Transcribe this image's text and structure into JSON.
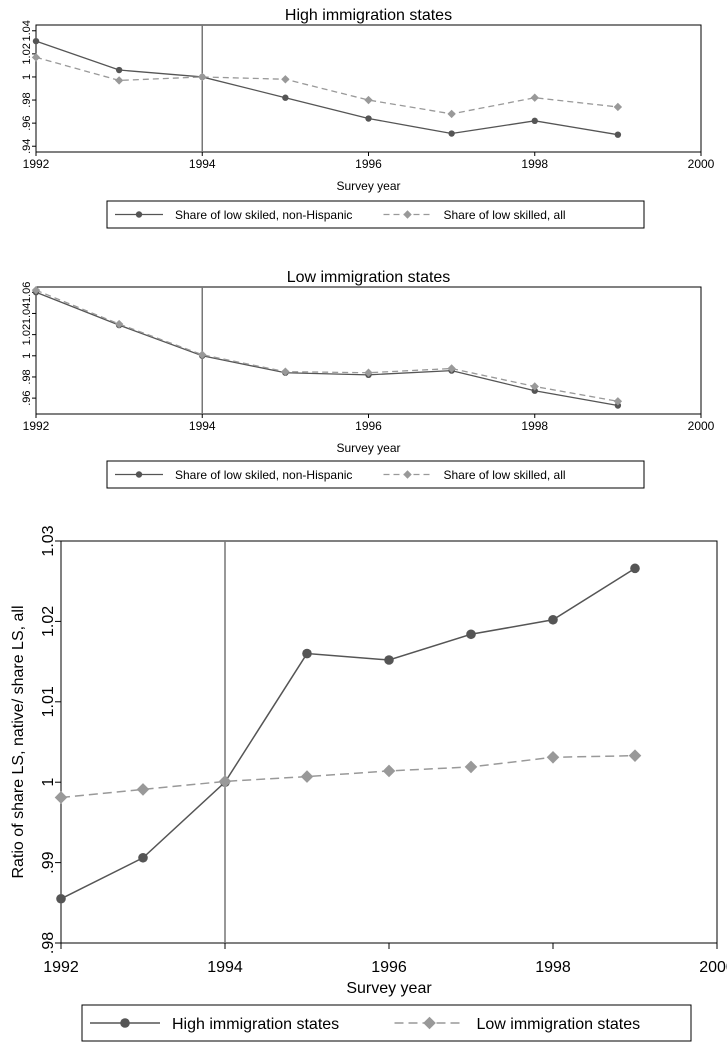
{
  "chart_data": [
    {
      "type": "line",
      "title": "High immigration states",
      "xlabel": "Survey year",
      "ylabel": "",
      "xlim": [
        1992,
        2000
      ],
      "ylim": [
        0.935,
        1.045
      ],
      "x_ticks": [
        "1992",
        "1994",
        "1996",
        "1998",
        "2000"
      ],
      "y_ticks": [
        ".94",
        ".96",
        ".98",
        "1",
        "1.02",
        "1.04"
      ],
      "vline_x": 1994,
      "x": [
        1992,
        1993,
        1994,
        1995,
        1996,
        1997,
        1998,
        1999
      ],
      "series": [
        {
          "name": "Share of low skiled, non-Hispanic",
          "color": "#555555",
          "dash": "solid",
          "marker": "circle",
          "values": [
            1.031,
            1.006,
            1.0,
            0.982,
            0.964,
            0.951,
            0.962,
            0.95
          ]
        },
        {
          "name": "Share of low skilled, all",
          "color": "#999999",
          "dash": "dashed",
          "marker": "diamond",
          "values": [
            1.017,
            0.997,
            1.0,
            0.998,
            0.98,
            0.968,
            0.982,
            0.974
          ]
        }
      ],
      "legend": "below"
    },
    {
      "type": "line",
      "title": "Low immigration states",
      "xlabel": "Survey year",
      "ylabel": "",
      "xlim": [
        1992,
        2000
      ],
      "ylim": [
        0.945,
        1.065
      ],
      "x_ticks": [
        "1992",
        "1994",
        "1996",
        "1998",
        "2000"
      ],
      "y_ticks": [
        ".96",
        ".98",
        "1",
        "1.02",
        "1.04",
        "1.06"
      ],
      "vline_x": 1994,
      "x": [
        1992,
        1993,
        1994,
        1995,
        1996,
        1997,
        1998,
        1999
      ],
      "series": [
        {
          "name": "Share of low skiled, non-Hispanic",
          "color": "#555555",
          "dash": "solid",
          "marker": "circle",
          "values": [
            1.06,
            1.029,
            1.0,
            0.984,
            0.982,
            0.986,
            0.967,
            0.953
          ]
        },
        {
          "name": "Share of low skilled, all",
          "color": "#999999",
          "dash": "dashed",
          "marker": "diamond",
          "values": [
            1.062,
            1.03,
            1.001,
            0.985,
            0.984,
            0.988,
            0.971,
            0.957
          ]
        }
      ],
      "legend": "below"
    },
    {
      "type": "line",
      "title": "",
      "xlabel": "Survey year",
      "ylabel": "Ratio of share LS, native/ share LS, all",
      "xlim": [
        1992,
        2000
      ],
      "ylim": [
        0.98,
        1.03
      ],
      "x_ticks": [
        "1992",
        "1994",
        "1996",
        "1998",
        "2000"
      ],
      "y_ticks": [
        ".98",
        ".99",
        "1",
        "1.01",
        "1.02",
        "1.03"
      ],
      "vline_x": 1994,
      "x": [
        1992,
        1993,
        1994,
        1995,
        1996,
        1997,
        1998,
        1999
      ],
      "series": [
        {
          "name": "High immigration states",
          "color": "#555555",
          "dash": "solid",
          "marker": "circle",
          "values": [
            0.9855,
            0.9906,
            1.0,
            1.016,
            1.0152,
            1.0184,
            1.0202,
            1.0266
          ]
        },
        {
          "name": "Low immigration states",
          "color": "#999999",
          "dash": "dashed",
          "marker": "diamond",
          "values": [
            0.9981,
            0.9991,
            1.0001,
            1.0007,
            1.0014,
            1.0019,
            1.0031,
            1.0033
          ]
        }
      ],
      "legend": "below"
    }
  ]
}
